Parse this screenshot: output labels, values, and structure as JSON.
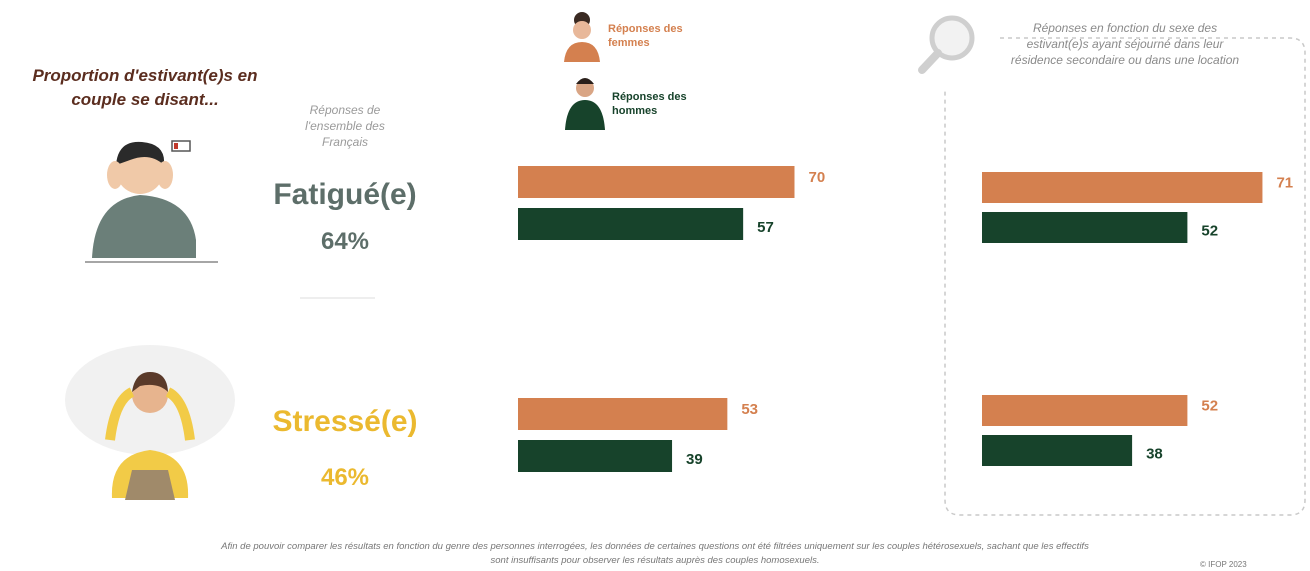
{
  "title": "Proportion d'estivant(e)s en couple se disant...",
  "overall": {
    "label": "Réponses de l'ensemble des Français",
    "items": [
      {
        "label": "Fatigué(e)",
        "percent": "64%"
      },
      {
        "label": "Stressé(e)",
        "percent": "46%"
      }
    ]
  },
  "chart_data": [
    {
      "type": "bar",
      "orientation": "horizontal",
      "series": [
        {
          "name": "Réponses des femmes",
          "color": "#d4804f",
          "values": [
            70,
            53
          ]
        },
        {
          "name": "Réponses des hommes",
          "color": "#17432b",
          "values": [
            57,
            39
          ]
        }
      ]
    },
    {
      "type": "bar",
      "orientation": "horizontal",
      "subtitle": "Réponses en fonction du sexe des estivant(e)s ayant séjourné dans leur résidence secondaire ou dans une location",
      "series": [
        {
          "color": "#d4804f",
          "values": [
            71,
            52
          ]
        },
        {
          "color": "#17432b",
          "values": [
            52,
            38
          ]
        }
      ]
    }
  ],
  "footnote": "Afin de pouvoir comparer les résultats en fonction du genre des personnes interrogées, les données de certaines questions ont été filtrées uniquement sur les couples hétérosexuels, sachant que les effectifs sont insuffisants pour observer les résultats auprès des couples homosexuels.",
  "copyright": "© IFOP 2023"
}
